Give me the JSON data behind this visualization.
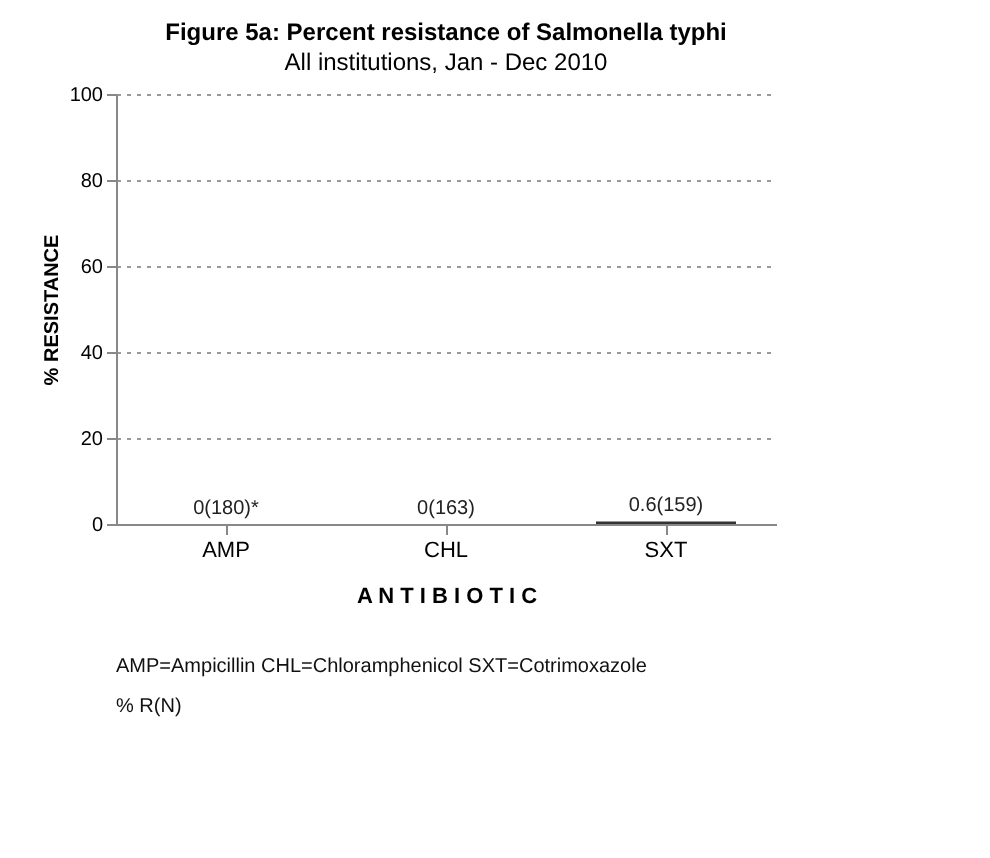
{
  "chart_data": {
    "type": "bar",
    "title": "Figure 5a: Percent resistance of Salmonella typhi",
    "subtitle": "All institutions, Jan - Dec 2010",
    "categories": [
      "AMP",
      "CHL",
      "SXT"
    ],
    "values": [
      0,
      0,
      0.6
    ],
    "value_labels": [
      "0(180)*",
      "0(163)",
      "0.6(159)"
    ],
    "color": "#333333",
    "xlabel": "A N T I B I O T I C",
    "ylabel": "% RESISTANCE",
    "ylim": [
      0,
      100
    ],
    "yticks": [
      0,
      20,
      40,
      60,
      80,
      100
    ],
    "grid": "y",
    "annotations": [
      "AMP=Ampicillin  CHL=Chloramphenicol  SXT=Cotrimoxazole",
      "% R(N)"
    ]
  }
}
